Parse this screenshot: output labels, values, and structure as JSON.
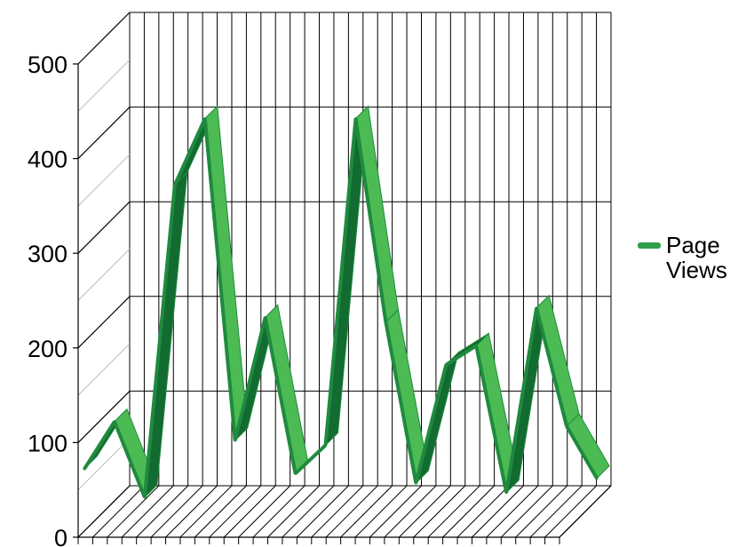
{
  "chart_data": {
    "type": "area",
    "style": "3d-ribbon",
    "yticks": [
      "0",
      "100",
      "200",
      "300",
      "400",
      "500"
    ],
    "ylim": [
      0,
      500
    ],
    "grid": true,
    "legend_position": "right",
    "series": [
      {
        "name": "Page Views",
        "color": "#2e9e4a",
        "values": [
          30,
          80,
          0,
          330,
          400,
          60,
          190,
          25,
          55,
          400,
          185,
          15,
          140,
          160,
          5,
          200,
          75,
          20
        ]
      }
    ]
  },
  "colors": {
    "ribbon_top": "#4cbb54",
    "ribbon_front": "#1f8a3e",
    "ribbon_dark": "#126b30",
    "grid": "#000000"
  }
}
